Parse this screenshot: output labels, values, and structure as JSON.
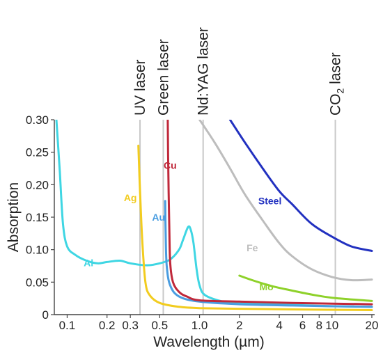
{
  "chart_data": {
    "type": "line",
    "xlabel": "Wavelength (µm)",
    "ylabel": "Absorption",
    "x_scale": "log",
    "xlim": [
      0.08,
      21
    ],
    "ylim": [
      0,
      0.3
    ],
    "x_ticks": [
      {
        "value": 0.1,
        "label": "0.1"
      },
      {
        "value": 0.2,
        "label": "0.2"
      },
      {
        "value": 0.3,
        "label": "0.3"
      },
      {
        "value": 0.5,
        "label": "0.5"
      },
      {
        "value": 1.0,
        "label": "1.0"
      },
      {
        "value": 2,
        "label": "2"
      },
      {
        "value": 4,
        "label": "4"
      },
      {
        "value": 6,
        "label": "6"
      },
      {
        "value": 8,
        "label": "8"
      },
      {
        "value": 10,
        "label": "10"
      },
      {
        "value": 20,
        "label": "20"
      }
    ],
    "y_ticks": [
      {
        "value": 0,
        "label": "0"
      },
      {
        "value": 0.05,
        "label": "0.05"
      },
      {
        "value": 0.1,
        "label": "0.10"
      },
      {
        "value": 0.15,
        "label": "0.15"
      },
      {
        "value": 0.2,
        "label": "0.20"
      },
      {
        "value": 0.25,
        "label": "0.25"
      },
      {
        "value": 0.3,
        "label": "0.30"
      }
    ],
    "lasers": [
      {
        "name": "UV laser",
        "x": 0.355
      },
      {
        "name": "Green laser",
        "x": 0.532
      },
      {
        "name": "Nd:YAG laser",
        "x": 1.064
      },
      {
        "name": "CO2 laser",
        "base": "CO",
        "sub": "2",
        "rest": " laser",
        "x": 10.6
      }
    ],
    "series": [
      {
        "name": "Al",
        "color": "#3fd6e3",
        "points": [
          [
            0.083,
            0.3
          ],
          [
            0.088,
            0.22
          ],
          [
            0.093,
            0.14
          ],
          [
            0.1,
            0.105
          ],
          [
            0.115,
            0.092
          ],
          [
            0.14,
            0.083
          ],
          [
            0.17,
            0.079
          ],
          [
            0.2,
            0.081
          ],
          [
            0.25,
            0.083
          ],
          [
            0.3,
            0.079
          ],
          [
            0.4,
            0.076
          ],
          [
            0.5,
            0.079
          ],
          [
            0.6,
            0.085
          ],
          [
            0.7,
            0.1
          ],
          [
            0.75,
            0.115
          ],
          [
            0.82,
            0.135
          ],
          [
            0.86,
            0.13
          ],
          [
            0.9,
            0.11
          ],
          [
            0.95,
            0.07
          ],
          [
            1.0,
            0.045
          ],
          [
            1.1,
            0.03
          ],
          [
            1.5,
            0.02
          ],
          [
            2,
            0.018
          ],
          [
            5,
            0.015
          ],
          [
            10,
            0.013
          ],
          [
            20,
            0.012
          ]
        ],
        "label": {
          "x": 0.145,
          "y": 0.08
        }
      },
      {
        "name": "Ag",
        "color": "#f2cc1f",
        "points": [
          [
            0.345,
            0.26
          ],
          [
            0.355,
            0.19
          ],
          [
            0.37,
            0.11
          ],
          [
            0.39,
            0.05
          ],
          [
            0.42,
            0.03
          ],
          [
            0.5,
            0.018
          ],
          [
            0.7,
            0.012
          ],
          [
            1,
            0.01
          ],
          [
            2,
            0.009
          ],
          [
            5,
            0.008
          ],
          [
            20,
            0.007
          ]
        ],
        "label": {
          "x": 0.3,
          "y": 0.18
        }
      },
      {
        "name": "Au",
        "color": "#4a9de0",
        "points": [
          [
            0.55,
            0.175
          ],
          [
            0.555,
            0.12
          ],
          [
            0.565,
            0.075
          ],
          [
            0.6,
            0.045
          ],
          [
            0.7,
            0.028
          ],
          [
            1.0,
            0.02
          ],
          [
            2,
            0.016
          ],
          [
            5,
            0.014
          ],
          [
            20,
            0.012
          ]
        ],
        "label": {
          "x": 0.49,
          "y": 0.15
        }
      },
      {
        "name": "Cu",
        "color": "#c0283a",
        "points": [
          [
            0.575,
            0.3
          ],
          [
            0.58,
            0.23
          ],
          [
            0.59,
            0.14
          ],
          [
            0.6,
            0.08
          ],
          [
            0.63,
            0.05
          ],
          [
            0.7,
            0.035
          ],
          [
            0.8,
            0.028
          ],
          [
            1.0,
            0.022
          ],
          [
            2,
            0.02
          ],
          [
            5,
            0.018
          ],
          [
            20,
            0.016
          ]
        ],
        "label": {
          "x": 0.6,
          "y": 0.23
        }
      },
      {
        "name": "Fe",
        "color": "#bdbdbd",
        "points": [
          [
            1.0,
            0.3
          ],
          [
            1.3,
            0.265
          ],
          [
            1.7,
            0.225
          ],
          [
            2.2,
            0.185
          ],
          [
            3,
            0.145
          ],
          [
            4,
            0.11
          ],
          [
            5,
            0.09
          ],
          [
            7,
            0.07
          ],
          [
            10,
            0.058
          ],
          [
            14,
            0.053
          ],
          [
            20,
            0.054
          ]
        ],
        "label": {
          "x": 2.5,
          "y": 0.103
        }
      },
      {
        "name": "Steel",
        "color": "#2231c0",
        "points": [
          [
            1.7,
            0.3
          ],
          [
            2.2,
            0.265
          ],
          [
            3,
            0.225
          ],
          [
            4,
            0.19
          ],
          [
            5,
            0.17
          ],
          [
            7,
            0.14
          ],
          [
            10,
            0.12
          ],
          [
            14,
            0.105
          ],
          [
            20,
            0.098
          ]
        ],
        "label": {
          "x": 3.4,
          "y": 0.175
        }
      },
      {
        "name": "Mo",
        "color": "#8ed12a",
        "points": [
          [
            2,
            0.06
          ],
          [
            2.5,
            0.053
          ],
          [
            3.5,
            0.044
          ],
          [
            5,
            0.037
          ],
          [
            7,
            0.031
          ],
          [
            10,
            0.026
          ],
          [
            20,
            0.021
          ]
        ],
        "label": {
          "x": 3.2,
          "y": 0.043
        }
      }
    ]
  }
}
